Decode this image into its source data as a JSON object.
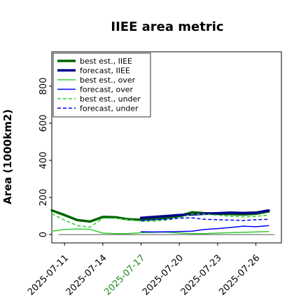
{
  "chart_data": {
    "type": "line",
    "title": "IIEE area metric",
    "ylabel": "Area (1000km2)",
    "xlabel": "",
    "ylim": [
      -45,
      985
    ],
    "xlim": [
      "2025-07-10",
      "2025-07-28"
    ],
    "yticks": [
      0,
      200,
      400,
      600,
      800
    ],
    "xtick_labels": [
      "2025-07-11",
      "2025-07-14",
      "2025-07-17",
      "2025-07-20",
      "2025-07-23",
      "2025-07-26"
    ],
    "highlight_xtick": "2025-07-17",
    "grid": false,
    "legend_position": "upper-left",
    "baseline": 0,
    "series": [
      {
        "name": "best est., IIEE",
        "color": "#006400",
        "width": 3.5,
        "dash": "solid",
        "x": [
          "2025-07-10",
          "2025-07-11",
          "2025-07-12",
          "2025-07-13",
          "2025-07-14",
          "2025-07-15",
          "2025-07-16",
          "2025-07-17",
          "2025-07-18",
          "2025-07-19",
          "2025-07-20",
          "2025-07-21",
          "2025-07-22",
          "2025-07-23",
          "2025-07-24",
          "2025-07-25",
          "2025-07-26",
          "2025-07-27"
        ],
        "y": [
          130,
          105,
          78,
          70,
          95,
          93,
          82,
          80,
          83,
          90,
          100,
          120,
          115,
          112,
          110,
          108,
          112,
          125
        ]
      },
      {
        "name": "forecast, IIEE",
        "color": "#00008b",
        "width": 3.5,
        "dash": "solid",
        "x": [
          "2025-07-17",
          "2025-07-18",
          "2025-07-19",
          "2025-07-20",
          "2025-07-21",
          "2025-07-22",
          "2025-07-23",
          "2025-07-24",
          "2025-07-25",
          "2025-07-26",
          "2025-07-27"
        ],
        "y": [
          90,
          95,
          100,
          105,
          108,
          112,
          115,
          118,
          116,
          118,
          130
        ]
      },
      {
        "name": "best est., over",
        "color": "#32cd32",
        "width": 1.5,
        "dash": "solid",
        "x": [
          "2025-07-10",
          "2025-07-11",
          "2025-07-12",
          "2025-07-13",
          "2025-07-14",
          "2025-07-15",
          "2025-07-16",
          "2025-07-17",
          "2025-07-18",
          "2025-07-19",
          "2025-07-20",
          "2025-07-21",
          "2025-07-22",
          "2025-07-23",
          "2025-07-24",
          "2025-07-25",
          "2025-07-26",
          "2025-07-27"
        ],
        "y": [
          18,
          28,
          30,
          28,
          8,
          5,
          5,
          10,
          12,
          13,
          8,
          5,
          5,
          8,
          10,
          12,
          14,
          16
        ]
      },
      {
        "name": "forecast, over",
        "color": "#0000ff",
        "width": 1.5,
        "dash": "solid",
        "x": [
          "2025-07-17",
          "2025-07-18",
          "2025-07-19",
          "2025-07-20",
          "2025-07-21",
          "2025-07-22",
          "2025-07-23",
          "2025-07-24",
          "2025-07-25",
          "2025-07-26",
          "2025-07-27"
        ],
        "y": [
          15,
          14,
          15,
          16,
          18,
          28,
          32,
          38,
          45,
          42,
          48
        ]
      },
      {
        "name": "best est., under",
        "color": "#32cd32",
        "width": 1.5,
        "dash": "dashed",
        "x": [
          "2025-07-10",
          "2025-07-11",
          "2025-07-12",
          "2025-07-13",
          "2025-07-14",
          "2025-07-15",
          "2025-07-16",
          "2025-07-17",
          "2025-07-18",
          "2025-07-19",
          "2025-07-20",
          "2025-07-21",
          "2025-07-22",
          "2025-07-23",
          "2025-07-24",
          "2025-07-25",
          "2025-07-26",
          "2025-07-27"
        ],
        "y": [
          112,
          78,
          48,
          40,
          88,
          88,
          80,
          72,
          72,
          78,
          90,
          110,
          110,
          104,
          98,
          95,
          98,
          105
        ]
      },
      {
        "name": "forecast, under",
        "color": "#0000ff",
        "width": 1.5,
        "dash": "dashed",
        "x": [
          "2025-07-17",
          "2025-07-18",
          "2025-07-19",
          "2025-07-20",
          "2025-07-21",
          "2025-07-22",
          "2025-07-23",
          "2025-07-24",
          "2025-07-25",
          "2025-07-26",
          "2025-07-27"
        ],
        "y": [
          75,
          80,
          82,
          88,
          90,
          82,
          80,
          78,
          76,
          80,
          82
        ]
      }
    ]
  }
}
